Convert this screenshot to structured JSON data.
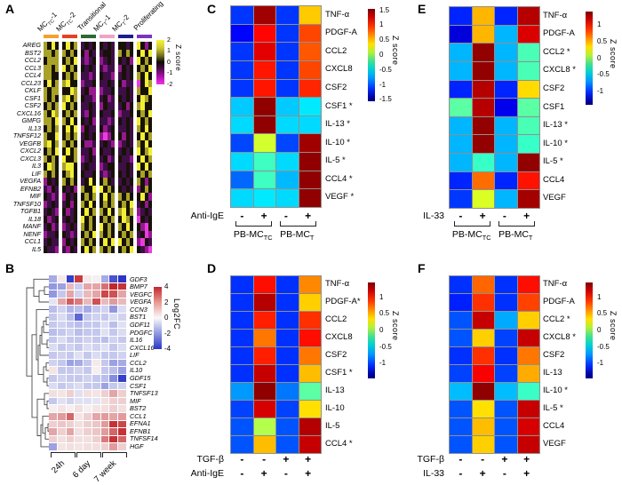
{
  "chart_data": [
    {
      "panel": "A",
      "type": "heatmap",
      "colormap": "yellow-black-magenta",
      "col_groups": [
        {
          "label": "MC~TC~-1",
          "color": "#F2A22C"
        },
        {
          "label": "MC~TC~-2",
          "color": "#E8401F"
        },
        {
          "label": "Transitional",
          "color": "#2D6A33"
        },
        {
          "label": "MC~T~-1",
          "color": "#EFA3C8"
        },
        {
          "label": "MC~T~-2",
          "color": "#1D1C90"
        },
        {
          "label": "Proliferating",
          "color": "#7A35BD"
        }
      ],
      "cols_per_group": 4,
      "rows": [
        "AREG",
        "BST2",
        "CCL2",
        "CCL3",
        "CCL4",
        "CCL23",
        "CKLF",
        "CSF1",
        "CSF2",
        "CXCL16",
        "GMFG",
        "IL13",
        "TNFSF12",
        "VEGFB",
        "CXCL2",
        "CXCL3",
        "IL3",
        "LIF",
        "VEGFA",
        "EFNB2",
        "MIF",
        "TNFSF10",
        "TGFB1",
        "IL18",
        "MANF",
        "NENF",
        "CCL1",
        "IL5"
      ],
      "cell_codes": [
        "ykYkkYkypkpkkpkpkkpkYkmk",
        "yykyykykkmkppkkpykykkYkY",
        "kyyykykYpmpkmpkpkpkmYkyk",
        "yykyYkykkpkppmppmkpkkykY",
        "yykkkykyppmpkppmpkpkykYk",
        "kYkyyYkkmppkppkpkmppMkYy",
        "ykyykkYypkmmmppkppkpykkY",
        "ykykyYkykppmpkmpkpkpkYyk",
        "kykyYkykppkpmkpppkmkyYkk",
        "ykYykykypmkpkppkmppkkykY",
        "yykYykYkkpkmppmpkpkpYkyk",
        "kykykYkYmkppkmpkppkpykYk",
        "ykkYkykypkpkmMmkkmkpkYky",
        "yYkyykykkmmppkpmmpkpykYk",
        "kykYkYkyppkmkppkpkpkYkyY",
        "ykykYkkympkppkmpkppmkYky",
        "kYykyYYkpkppmpkkppkpYkYk",
        "ykykkyYkkppkpmpkkpkpkyky",
        "mkpkykykpkYkkykppkpkykmk",
        "pmkpkpkmykkYYkykkpkpmkyk",
        "kpmpmkpkkykykYkyykykkYkm",
        "mpkppkmkykYkkykykykYpkmk",
        "pkpmkmpkkYkyykYkyYkympkp",
        "kmpkpkpkYkykkykykYykMkpk",
        "pkmpmpkpykykYkykykYkkmMk",
        "mppkkpmpkykYykykkykypkMm",
        "pkppmkpkykykkYkYYkykmMkp",
        "kppmpmkpkYkyykykkykYkpmM"
      ],
      "code_colors": {
        "Y": "#f2ee35",
        "y": "#a8a228",
        "k": "#171206",
        "p": "#3e0f47",
        "m": "#96188f",
        "M": "#e93ce0"
      },
      "legend": {
        "title": "Z score",
        "ticks": [
          "2",
          "1",
          "0",
          "-1",
          "-2"
        ]
      }
    },
    {
      "panel": "B",
      "type": "heatmap",
      "colormap": "blue-white-red",
      "x_groups": [
        "24h",
        "6 day",
        "7 week"
      ],
      "cols_per_group": 3,
      "rows": [
        "GDF3",
        "BMP7",
        "VEGFC",
        "VEGFA",
        "CCN3",
        "BST1",
        "GDF11",
        "PDGFC",
        "IL16",
        "CXCL16",
        "LIF",
        "CCL2",
        "IL10",
        "GDF15",
        "CSF1",
        "TNFSF13",
        "MIF",
        "BST2",
        "CCL1",
        "EFNA1",
        "EFNB1",
        "TNFSF14",
        "HGF"
      ],
      "values": [
        [
          -1.6,
          0.3,
          -3.8,
          3.6,
          0.3,
          0.2,
          -1.6,
          -3.4,
          -4.0
        ],
        [
          -2.0,
          -1.8,
          1.2,
          -0.9,
          1.6,
          1.6,
          2.6,
          4.0,
          3.8
        ],
        [
          -2.0,
          -1.0,
          1.6,
          -0.8,
          1.2,
          1.6,
          3.4,
          3.2,
          1.6
        ],
        [
          -0.4,
          1.6,
          3.0,
          2.4,
          1.2,
          3.2,
          1.2,
          1.8,
          1.2
        ],
        [
          -1.2,
          -0.8,
          -1.4,
          -1.2,
          -1.6,
          -1.0,
          -0.8,
          -2.0,
          -0.6
        ],
        [
          -1.0,
          -0.6,
          -1.2,
          -3.0,
          -1.0,
          -0.8,
          -1.0,
          -0.6,
          -0.8
        ],
        [
          -1.0,
          -0.8,
          -1.0,
          -1.2,
          -1.0,
          -1.0,
          -0.6,
          -1.2,
          -0.5
        ],
        [
          -1.2,
          -1.0,
          -0.8,
          -1.2,
          -1.0,
          -1.0,
          -0.5,
          -1.0,
          -0.6
        ],
        [
          -1.0,
          -0.6,
          -1.0,
          -1.0,
          -0.8,
          -1.0,
          -1.2,
          -0.8,
          -1.0
        ],
        [
          -0.6,
          -1.0,
          -0.8,
          -1.0,
          -0.6,
          -0.8,
          -0.5,
          -1.0,
          -0.6
        ],
        [
          -1.0,
          -0.8,
          -1.0,
          -0.5,
          -1.0,
          -0.6,
          -1.0,
          -1.0,
          -0.8
        ],
        [
          -0.8,
          -1.0,
          -1.8,
          -1.6,
          -1.0,
          0.3,
          -1.0,
          -1.8,
          -1.6
        ],
        [
          0.4,
          -1.0,
          -1.0,
          -0.8,
          -1.0,
          0.2,
          -1.0,
          -1.2,
          -1.8
        ],
        [
          -1.0,
          -0.8,
          -1.0,
          -1.0,
          -0.8,
          -1.0,
          -1.2,
          -2.2,
          -3.8
        ],
        [
          -0.6,
          -1.0,
          -0.8,
          -0.6,
          -1.0,
          -1.0,
          -1.8,
          -1.0,
          -0.8
        ],
        [
          0.5,
          0.4,
          0.8,
          -0.5,
          0.5,
          0.4,
          0.8,
          1.6,
          0.8
        ],
        [
          -1.0,
          -0.5,
          -0.8,
          -0.5,
          -0.5,
          -0.4,
          0.5,
          0.8,
          0.8
        ],
        [
          0.2,
          0.4,
          0.2,
          0.5,
          0.2,
          0.4,
          0.5,
          0.8,
          0.5
        ],
        [
          1.6,
          1.8,
          2.8,
          0.4,
          0.8,
          1.6,
          1.8,
          1.6,
          1.8
        ],
        [
          0.8,
          1.0,
          0.8,
          0.5,
          0.8,
          1.0,
          1.8,
          3.8,
          3.4
        ],
        [
          1.6,
          0.8,
          1.6,
          0.5,
          0.8,
          1.0,
          1.8,
          2.8,
          3.8
        ],
        [
          0.8,
          0.5,
          0.8,
          0.5,
          0.5,
          0.8,
          2.4,
          3.8,
          2.8
        ],
        [
          -1.8,
          0.4,
          0.5,
          0.4,
          0.5,
          0.5,
          0.8,
          1.8,
          0.8
        ]
      ],
      "legend": {
        "title": "Log2FC",
        "ticks": [
          "4",
          "2",
          "0",
          "-2",
          "-4"
        ],
        "vmin": -4,
        "vmax": 4
      }
    },
    {
      "panel": "C",
      "type": "heatmap",
      "colormap": "jet",
      "vabs": 1.55,
      "rows": [
        "TNF-α",
        "PDGF-A",
        "CCL2",
        "CXCL8",
        "CSF2",
        "CSF1 *",
        "IL-13 *",
        "IL-10 *",
        "IL-5 *",
        "CCL4 *",
        "VEGF *"
      ],
      "values": [
        [
          -1.0,
          1.45,
          -1.0,
          0.55
        ],
        [
          -1.15,
          1.15,
          -1.0,
          0.95
        ],
        [
          -1.0,
          1.25,
          -1.0,
          0.9
        ],
        [
          -1.0,
          1.1,
          -1.0,
          0.95
        ],
        [
          -1.0,
          1.1,
          -1.0,
          1.05
        ],
        [
          -0.55,
          1.5,
          -0.55,
          -0.45
        ],
        [
          -0.5,
          1.5,
          -0.5,
          -0.5
        ],
        [
          -0.95,
          0.25,
          -0.95,
          1.45
        ],
        [
          -0.5,
          -0.2,
          -0.5,
          1.5
        ],
        [
          -0.85,
          -0.2,
          -0.6,
          1.5
        ],
        [
          -0.5,
          -0.45,
          -0.5,
          1.5
        ]
      ],
      "x_axis": [
        {
          "label": "Anti-IgE",
          "signs": [
            "-",
            "+",
            "-",
            "+"
          ]
        }
      ],
      "groups": [
        "PB-MC~TC~",
        "PB-MC~T~"
      ],
      "legend": {
        "title": "Z score",
        "ticks": [
          1.5,
          1,
          0.5,
          0,
          -0.5,
          -1,
          -1.5
        ]
      }
    },
    {
      "panel": "D",
      "type": "heatmap",
      "colormap": "jet",
      "vabs": 1.45,
      "rows": [
        "TNF-α",
        "PDGF-A*",
        "CCL2",
        "CXCL8",
        "CSF2",
        "CSF1 *",
        "IL-13",
        "IL-10",
        "IL-5",
        "CCL4 *"
      ],
      "values": [
        [
          -0.95,
          1.05,
          -0.95,
          0.7
        ],
        [
          -0.95,
          1.3,
          -0.95,
          0.5
        ],
        [
          -0.95,
          1.0,
          -0.95,
          0.95
        ],
        [
          -0.95,
          0.75,
          -0.95,
          1.05
        ],
        [
          -0.95,
          1.0,
          -0.95,
          0.75
        ],
        [
          -0.95,
          1.25,
          -0.95,
          0.55
        ],
        [
          -0.65,
          1.4,
          -0.75,
          -0.1
        ],
        [
          -0.9,
          1.2,
          -0.9,
          0.45
        ],
        [
          -0.85,
          0.15,
          -0.85,
          1.3
        ],
        [
          -0.85,
          0.55,
          -0.85,
          1.25
        ]
      ],
      "x_axis": [
        {
          "label": "TGF-β",
          "signs": [
            "-",
            "-",
            "+",
            "+"
          ]
        },
        {
          "label": "Anti-IgE",
          "signs": [
            "-",
            "+",
            "-",
            "+"
          ]
        }
      ],
      "groups": [],
      "legend": {
        "title": "Z score",
        "ticks": [
          1,
          0.5,
          0,
          -0.5,
          -1
        ]
      }
    },
    {
      "panel": "E",
      "type": "heatmap",
      "colormap": "jet",
      "vabs": 1.4,
      "rows": [
        "TNF-α",
        "PDGF-A",
        "CCL2 *",
        "CXCL8 *",
        "CSF2",
        "CSF1",
        "IL-13 *",
        "IL-10 *",
        "IL-5 *",
        "CCL4",
        "VEGF"
      ],
      "values": [
        [
          -0.95,
          0.55,
          -0.95,
          1.25
        ],
        [
          -1.15,
          0.55,
          -0.55,
          1.15
        ],
        [
          -0.55,
          1.35,
          -0.55,
          -0.15
        ],
        [
          -0.55,
          1.35,
          -0.55,
          -0.15
        ],
        [
          -0.95,
          1.25,
          -0.95,
          0.45
        ],
        [
          -0.1,
          1.25,
          -1.1,
          -0.1
        ],
        [
          -0.55,
          1.35,
          -0.55,
          -0.15
        ],
        [
          -0.55,
          1.35,
          -0.55,
          -0.2
        ],
        [
          -0.55,
          -0.2,
          -0.55,
          1.35
        ],
        [
          -0.95,
          0.75,
          -0.95,
          1.0
        ],
        [
          -0.9,
          0.25,
          -0.55,
          1.3
        ]
      ],
      "x_axis": [
        {
          "label": "IL-33",
          "signs": [
            "-",
            "+",
            "-",
            "+"
          ]
        }
      ],
      "groups": [
        "PB-MC~TC~",
        "PB-MC~T~"
      ],
      "legend": {
        "title": "Z score",
        "ticks": [
          1,
          0.5,
          0,
          -0.5,
          -1
        ]
      }
    },
    {
      "panel": "F",
      "type": "heatmap",
      "colormap": "jet",
      "vabs": 1.45,
      "rows": [
        "TNF-α",
        "PDGF-A",
        "CCL2 *",
        "CXCL8 *",
        "CSF2",
        "IL-13",
        "IL-10 *",
        "IL-5 *",
        "CCL4",
        "VEGF"
      ],
      "values": [
        [
          -0.95,
          0.8,
          -0.95,
          1.05
        ],
        [
          -1.0,
          0.95,
          -0.95,
          0.9
        ],
        [
          -0.85,
          1.25,
          -0.6,
          0.5
        ],
        [
          -0.85,
          0.5,
          -0.9,
          1.25
        ],
        [
          -0.95,
          0.95,
          -0.95,
          0.75
        ],
        [
          -0.9,
          1.1,
          -0.9,
          0.6
        ],
        [
          -0.55,
          1.4,
          -0.55,
          -0.2
        ],
        [
          -0.85,
          0.45,
          -0.85,
          1.25
        ],
        [
          -0.85,
          0.55,
          -0.85,
          1.2
        ],
        [
          -0.85,
          0.5,
          -0.85,
          1.25
        ]
      ],
      "x_axis": [
        {
          "label": "TGF-β",
          "signs": [
            "-",
            "-",
            "+",
            "+"
          ]
        },
        {
          "label": "IL-33",
          "signs": [
            "-",
            "+",
            "-",
            "+"
          ]
        }
      ],
      "groups": [],
      "legend": {
        "title": "Z score",
        "ticks": [
          1,
          0.5,
          0,
          -0.5,
          -1
        ]
      }
    }
  ]
}
